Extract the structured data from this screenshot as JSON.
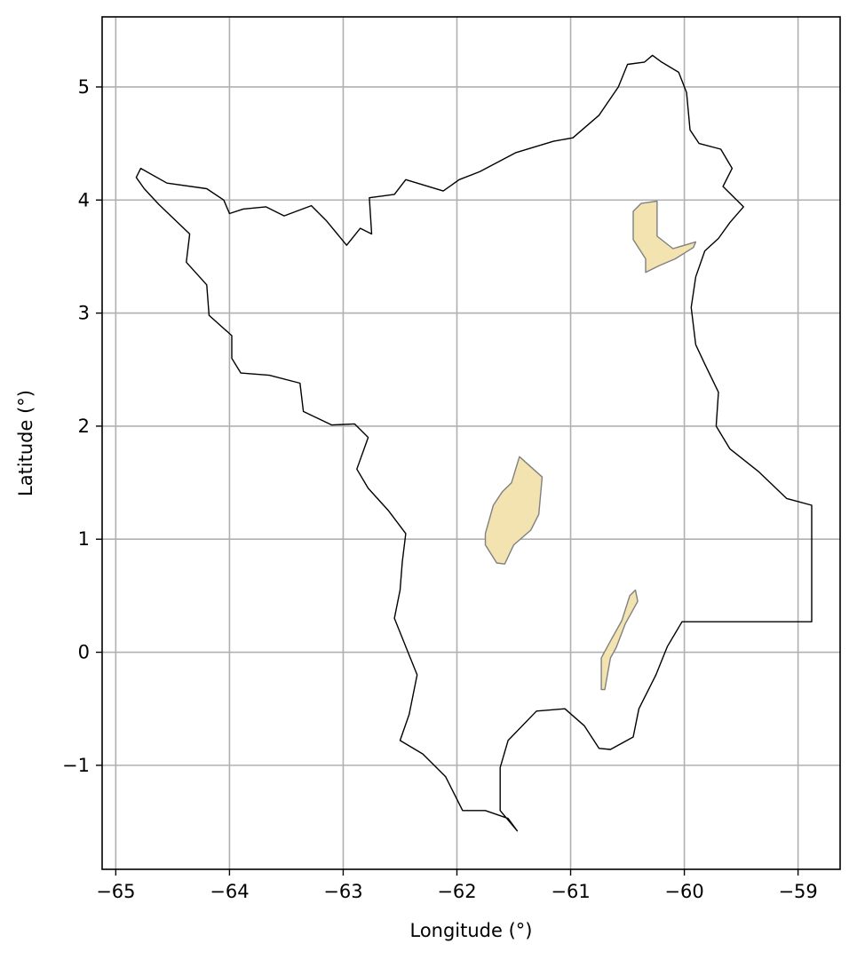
{
  "chart_data": {
    "type": "map",
    "title": "",
    "xlabel": "Longitude (°)",
    "ylabel": "Latitude (°)",
    "xlim": [
      -65.12,
      -58.63
    ],
    "ylim": [
      -1.92,
      5.62
    ],
    "grid": true,
    "x_ticks": [
      -65,
      -64,
      -63,
      -62,
      -61,
      -60,
      -59
    ],
    "x_tick_labels": [
      "−65",
      "−64",
      "−63",
      "−62",
      "−61",
      "−60",
      "−59"
    ],
    "y_ticks": [
      -1,
      0,
      1,
      2,
      3,
      4,
      5
    ],
    "y_tick_labels": [
      "−1",
      "0",
      "1",
      "2",
      "3",
      "4",
      "5"
    ],
    "colors": {
      "boundary": "#000000",
      "area_fill": "#f3e3b1",
      "area_edge": "#808080",
      "grid": "#b0b0b0"
    },
    "boundary": [
      [
        -60.35,
        5.22
      ],
      [
        -60.28,
        5.28
      ],
      [
        -60.2,
        5.22
      ],
      [
        -60.05,
        5.13
      ],
      [
        -59.98,
        4.95
      ],
      [
        -59.95,
        4.62
      ],
      [
        -59.87,
        4.5
      ],
      [
        -59.68,
        4.45
      ],
      [
        -59.58,
        4.28
      ],
      [
        -59.66,
        4.12
      ],
      [
        -59.48,
        3.94
      ],
      [
        -59.6,
        3.8
      ],
      [
        -59.7,
        3.66
      ],
      [
        -59.82,
        3.55
      ],
      [
        -59.9,
        3.32
      ],
      [
        -59.94,
        3.05
      ],
      [
        -59.9,
        2.72
      ],
      [
        -59.82,
        2.55
      ],
      [
        -59.7,
        2.3
      ],
      [
        -59.72,
        2.0
      ],
      [
        -59.6,
        1.8
      ],
      [
        -59.35,
        1.6
      ],
      [
        -59.1,
        1.36
      ],
      [
        -58.88,
        1.3
      ],
      [
        -58.88,
        0.27
      ],
      [
        -60.02,
        0.27
      ],
      [
        -60.15,
        0.05
      ],
      [
        -60.25,
        -0.2
      ],
      [
        -60.4,
        -0.5
      ],
      [
        -60.45,
        -0.75
      ],
      [
        -60.65,
        -0.86
      ],
      [
        -60.75,
        -0.85
      ],
      [
        -60.88,
        -0.65
      ],
      [
        -61.05,
        -0.5
      ],
      [
        -61.3,
        -0.52
      ],
      [
        -61.55,
        -0.78
      ],
      [
        -61.62,
        -1.02
      ],
      [
        -61.62,
        -1.4
      ],
      [
        -61.47,
        -1.58
      ],
      [
        -61.55,
        -1.47
      ],
      [
        -61.75,
        -1.4
      ],
      [
        -61.95,
        -1.4
      ],
      [
        -62.1,
        -1.1
      ],
      [
        -62.3,
        -0.9
      ],
      [
        -62.5,
        -0.78
      ],
      [
        -62.42,
        -0.55
      ],
      [
        -62.35,
        -0.2
      ],
      [
        -62.45,
        0.05
      ],
      [
        -62.55,
        0.3
      ],
      [
        -62.5,
        0.55
      ],
      [
        -62.48,
        0.8
      ],
      [
        -62.45,
        1.05
      ],
      [
        -62.6,
        1.25
      ],
      [
        -62.78,
        1.45
      ],
      [
        -62.88,
        1.62
      ],
      [
        -62.78,
        1.9
      ],
      [
        -62.9,
        2.02
      ],
      [
        -63.1,
        2.01
      ],
      [
        -63.35,
        2.13
      ],
      [
        -63.38,
        2.38
      ],
      [
        -63.65,
        2.45
      ],
      [
        -63.9,
        2.47
      ],
      [
        -63.98,
        2.6
      ],
      [
        -63.98,
        2.8
      ],
      [
        -64.18,
        2.98
      ],
      [
        -64.2,
        3.25
      ],
      [
        -64.38,
        3.45
      ],
      [
        -64.35,
        3.7
      ],
      [
        -64.62,
        3.96
      ],
      [
        -64.75,
        4.1
      ],
      [
        -64.82,
        4.2
      ],
      [
        -64.78,
        4.28
      ],
      [
        -64.55,
        4.15
      ],
      [
        -64.2,
        4.1
      ],
      [
        -64.05,
        4.0
      ],
      [
        -64.0,
        3.88
      ],
      [
        -63.88,
        3.92
      ],
      [
        -63.68,
        3.94
      ],
      [
        -63.52,
        3.86
      ],
      [
        -63.28,
        3.95
      ],
      [
        -63.15,
        3.82
      ],
      [
        -62.97,
        3.6
      ],
      [
        -62.85,
        3.75
      ],
      [
        -62.75,
        3.7
      ],
      [
        -62.77,
        4.02
      ],
      [
        -62.55,
        4.05
      ],
      [
        -62.45,
        4.18
      ],
      [
        -62.12,
        4.08
      ],
      [
        -61.98,
        4.18
      ],
      [
        -61.8,
        4.25
      ],
      [
        -61.48,
        4.42
      ],
      [
        -61.15,
        4.52
      ],
      [
        -60.98,
        4.55
      ],
      [
        -60.75,
        4.75
      ],
      [
        -60.58,
        5.0
      ],
      [
        -60.5,
        5.2
      ]
    ],
    "areas": [
      [
        [
          -60.24,
          3.99
        ],
        [
          -60.24,
          3.68
        ],
        [
          -60.1,
          3.57
        ],
        [
          -59.9,
          3.63
        ],
        [
          -59.92,
          3.58
        ],
        [
          -60.08,
          3.48
        ],
        [
          -60.22,
          3.42
        ],
        [
          -60.34,
          3.36
        ],
        [
          -60.34,
          3.48
        ],
        [
          -60.45,
          3.65
        ],
        [
          -60.45,
          3.9
        ],
        [
          -60.38,
          3.97
        ]
      ],
      [
        [
          -61.45,
          1.73
        ],
        [
          -61.25,
          1.55
        ],
        [
          -61.28,
          1.22
        ],
        [
          -61.35,
          1.08
        ],
        [
          -61.5,
          0.95
        ],
        [
          -61.58,
          0.78
        ],
        [
          -61.65,
          0.79
        ],
        [
          -61.75,
          0.95
        ],
        [
          -61.75,
          1.05
        ],
        [
          -61.68,
          1.3
        ],
        [
          -61.6,
          1.42
        ],
        [
          -61.52,
          1.5
        ]
      ],
      [
        [
          -60.43,
          0.55
        ],
        [
          -60.41,
          0.45
        ],
        [
          -60.52,
          0.25
        ],
        [
          -60.6,
          0.04
        ],
        [
          -60.65,
          -0.05
        ],
        [
          -60.7,
          -0.33
        ],
        [
          -60.73,
          -0.33
        ],
        [
          -60.73,
          -0.05
        ],
        [
          -60.65,
          0.1
        ],
        [
          -60.55,
          0.28
        ],
        [
          -60.48,
          0.5
        ]
      ]
    ]
  }
}
